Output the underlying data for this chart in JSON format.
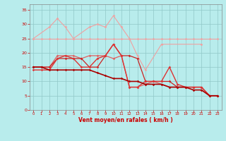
{
  "xlabel": "Vent moyen/en rafales ( km/h )",
  "x_ticks": [
    0,
    1,
    2,
    3,
    4,
    5,
    6,
    7,
    8,
    9,
    10,
    11,
    12,
    13,
    14,
    15,
    16,
    17,
    18,
    19,
    20,
    21,
    22,
    23
  ],
  "ylim": [
    0,
    37
  ],
  "xlim": [
    -0.5,
    23.5
  ],
  "y_ticks": [
    0,
    5,
    10,
    15,
    20,
    25,
    30,
    35
  ],
  "bg_color": "#b8ecec",
  "grid_color": "#90c8c8",
  "series": [
    {
      "x": [
        0,
        1,
        2,
        3,
        4,
        5,
        6,
        7,
        8,
        9,
        10,
        11,
        12,
        13,
        14,
        15,
        16,
        17,
        18,
        19,
        20,
        21,
        22,
        23
      ],
      "y": [
        25,
        25,
        25,
        25,
        25,
        25,
        25,
        25,
        25,
        25,
        25,
        25,
        25,
        25,
        25,
        25,
        25,
        25,
        25,
        25,
        25,
        25,
        25,
        25
      ],
      "color": "#f0a0a0",
      "lw": 0.8,
      "marker": "D",
      "ms": 1.8
    },
    {
      "x": [
        0,
        2,
        3,
        4,
        5,
        7,
        8,
        9,
        10,
        11,
        12,
        13,
        14,
        16,
        21
      ],
      "y": [
        25,
        29,
        32,
        29,
        25,
        29,
        30,
        29,
        33,
        29,
        25,
        19,
        14,
        23,
        23
      ],
      "color": "#f0a0a0",
      "lw": 0.8,
      "marker": "D",
      "ms": 1.8
    },
    {
      "x": [
        0,
        1,
        2,
        3,
        4,
        5,
        6,
        7,
        8,
        9,
        10,
        11,
        12,
        13,
        14,
        15,
        16,
        17,
        18,
        19,
        20,
        21,
        22,
        23
      ],
      "y": [
        15,
        15,
        15,
        19,
        19,
        19,
        18,
        19,
        19,
        19,
        18,
        19,
        8,
        8,
        9,
        10,
        9,
        8,
        8,
        8,
        8,
        8,
        5,
        5
      ],
      "color": "#e06060",
      "lw": 0.9,
      "marker": "D",
      "ms": 1.8
    },
    {
      "x": [
        0,
        1,
        2,
        3,
        4,
        5,
        6,
        7,
        8,
        9,
        10,
        11,
        12,
        13,
        14,
        15,
        16,
        17,
        18,
        19,
        20,
        21,
        22,
        23
      ],
      "y": [
        15,
        15,
        15,
        18,
        18,
        18,
        18,
        15,
        15,
        19,
        23,
        19,
        19,
        18,
        10,
        10,
        10,
        10,
        8,
        8,
        8,
        8,
        5,
        5
      ],
      "color": "#cc2222",
      "lw": 0.9,
      "marker": "D",
      "ms": 1.8
    },
    {
      "x": [
        0,
        1,
        2,
        3,
        4,
        5,
        6,
        7,
        8,
        9,
        10,
        11,
        12,
        13,
        14,
        15,
        16,
        17,
        18,
        19,
        20,
        21,
        22,
        23
      ],
      "y": [
        14,
        14,
        14,
        18,
        19,
        18,
        15,
        15,
        18,
        19,
        23,
        19,
        8,
        8,
        10,
        10,
        10,
        15,
        9,
        8,
        8,
        8,
        5,
        5
      ],
      "color": "#dd3333",
      "lw": 1.0,
      "marker": "D",
      "ms": 1.8
    },
    {
      "x": [
        0,
        1,
        2,
        3,
        4,
        5,
        6,
        7,
        8,
        9,
        10,
        11,
        12,
        13,
        14,
        15,
        16,
        17,
        18,
        19,
        20,
        21,
        22,
        23
      ],
      "y": [
        15,
        15,
        14,
        14,
        14,
        14,
        14,
        14,
        13,
        12,
        11,
        11,
        10,
        10,
        9,
        9,
        9,
        8,
        8,
        8,
        7,
        7,
        5,
        5
      ],
      "color": "#aa0000",
      "lw": 1.2,
      "marker": "D",
      "ms": 1.8
    }
  ],
  "arrow_color": "#cc2222"
}
